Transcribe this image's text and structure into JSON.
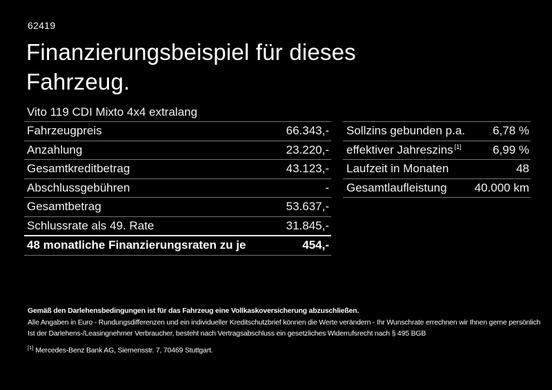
{
  "page": {
    "code": "62419",
    "title": "Finanzierungsbeispiel für dieses Fahrzeug.",
    "vehicle": "Vito 119 CDI Mixto 4x4 extralang"
  },
  "finance_table": {
    "rows": [
      {
        "label": "Fahrzeugpreis",
        "value": "66.343,-"
      },
      {
        "label": "Anzahlung",
        "value": "23.220,-"
      },
      {
        "label": "Gesamtkreditbetrag",
        "value": "43.123,-"
      },
      {
        "label": "Abschlussgebühren",
        "value": "-"
      },
      {
        "label": "Gesamtbetrag",
        "value": "53.637,-"
      },
      {
        "label": "Schlussrate als 49. Rate",
        "value": "31.845,-"
      }
    ],
    "highlight_row": {
      "label": "48 monatliche Finanzierungsraten zu je",
      "value": "454,-"
    }
  },
  "conditions_table": {
    "rows": [
      {
        "label": "Sollzins gebunden p.a.",
        "sup": "",
        "value": "6,78 %"
      },
      {
        "label": "effektiver Jahreszins",
        "sup": "[1]",
        "value": "6,99 %"
      },
      {
        "label": "Laufzeit in Monaten",
        "sup": "",
        "value": "48"
      },
      {
        "label": "Gesamtlaufleistung",
        "sup": "",
        "value": "40.000 km"
      }
    ]
  },
  "footer": {
    "line1": "Gemäß den Darlehensbedingungen ist für das Fahrzeug eine Vollkaskoversicherung abzuschließen.",
    "line2": "Alle Angaben in Euro - Rundungsdifferenzen und ein individueller Kreditschutzbrief können die Werte verändern - Ihr Wunschrate errechnen wir Ihnen gerne persönlich",
    "line3": "Ist der Darlehens-/Leasingnehmer Verbraucher, besteht nach Vertragsabschluss ein gesetzliches Widerrufsrecht nach § 495 BGB",
    "footnote_marker": "[1]",
    "footnote": "Mercedes-Benz Bank AG, Siemensstr. 7, 70469 Stuttgart."
  },
  "colors": {
    "background": "#000000",
    "text": "#f2f2f2",
    "divider": "#757575",
    "highlight_divider": "#e9e9e9"
  }
}
